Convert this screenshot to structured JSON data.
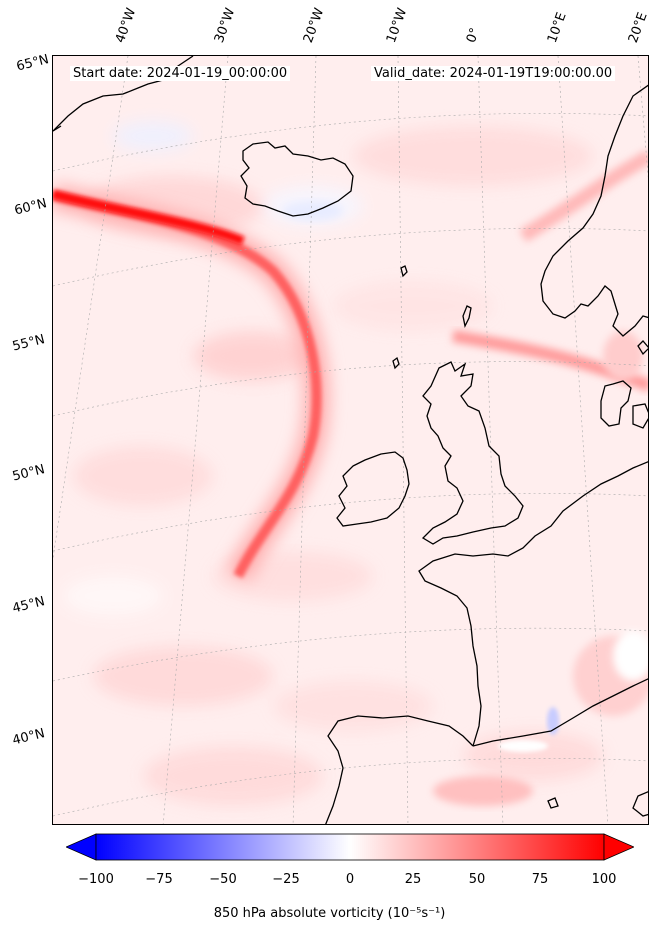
{
  "header": {
    "start_date": "Start date: 2024-01-19_00:00:00",
    "valid_date": "Valid_date: 2024-01-19T19:00:00.00"
  },
  "axes": {
    "longitude_labels": [
      "40°W",
      "30°W",
      "20°W",
      "10°W",
      "0°",
      "10°E",
      "20°E"
    ],
    "latitude_labels": [
      "65°N",
      "60°N",
      "55°N",
      "50°N",
      "45°N",
      "40°N"
    ]
  },
  "colorbar": {
    "label": "850 hPa absolute vorticity (10⁻⁵s⁻¹)",
    "ticks": [
      "−100",
      "−75",
      "−50",
      "−25",
      "0",
      "25",
      "50",
      "75",
      "100"
    ],
    "min": -100,
    "max": 100,
    "colormap": "bwr",
    "extend": "both",
    "colors": {
      "negative": "#0000ff",
      "zero": "#ffffff",
      "positive": "#ff0000"
    }
  },
  "map": {
    "projection": "conic",
    "coastline_color": "#000000",
    "gridline_style": "dotted-gray"
  }
}
